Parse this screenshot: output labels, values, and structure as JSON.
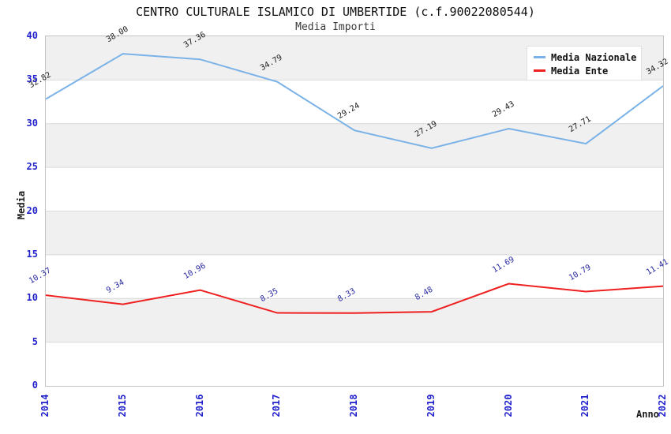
{
  "title": "CENTRO CULTURALE ISLAMICO DI UMBERTIDE (c.f.90022080544)",
  "subtitle": "Media Importi",
  "chart_data": {
    "type": "line",
    "categories": [
      "2014",
      "2015",
      "2016",
      "2017",
      "2018",
      "2019",
      "2020",
      "2021",
      "2022"
    ],
    "series": [
      {
        "name": "Media Nazionale",
        "color": "#7ab2e8",
        "label_color": "#1a1a1a",
        "values": [
          32.82,
          38.0,
          37.36,
          34.79,
          29.24,
          27.19,
          29.43,
          27.71,
          34.32
        ]
      },
      {
        "name": "Media Ente",
        "color": "#ee2020",
        "label_color": "#2929a3",
        "values": [
          10.37,
          9.34,
          10.96,
          8.35,
          8.33,
          8.48,
          11.69,
          10.79,
          11.41
        ]
      }
    ],
    "xlabel": "Anno",
    "ylabel": "Media",
    "ylim": [
      0,
      40
    ],
    "yticks": [
      0,
      5,
      10,
      15,
      20,
      25,
      30,
      35,
      40
    ],
    "grid": "horizontal-bands-alternating",
    "legend_position": "top-right",
    "colors": {
      "band": "#f0f0f0",
      "grid": "#d8d8d8",
      "border": "#c4c4c4",
      "axis_tick": "#2222cc"
    }
  }
}
